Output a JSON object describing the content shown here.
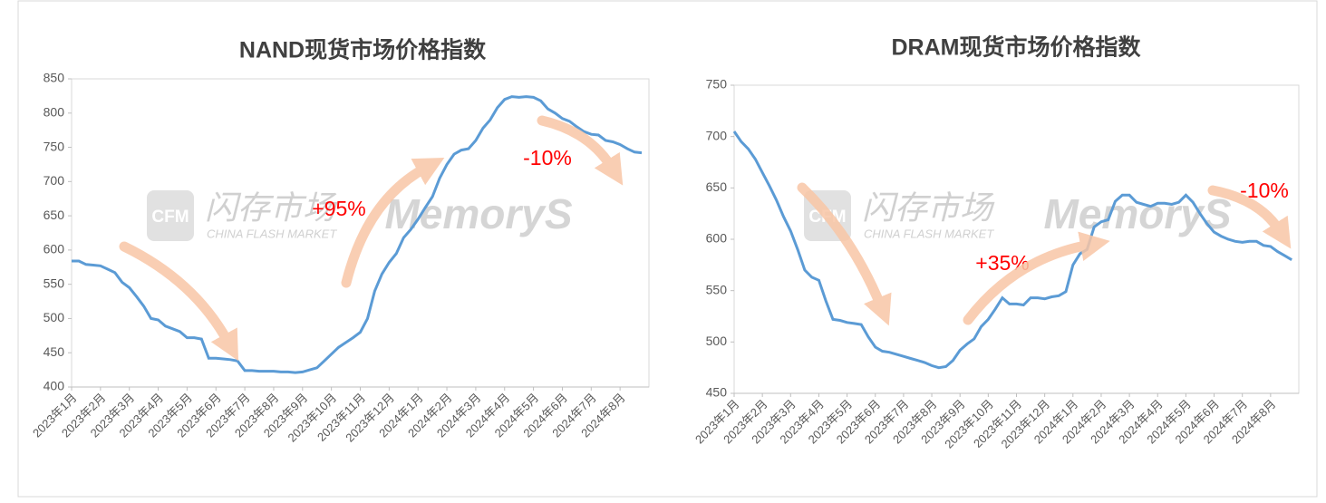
{
  "chart_data": [
    {
      "type": "line",
      "title": "NAND现货市场价格指数",
      "color": "#5b9bd5",
      "categories": [
        "2023年1月",
        null,
        null,
        null,
        "2023年2月",
        null,
        null,
        null,
        "2023年3月",
        null,
        null,
        null,
        "2023年4月",
        null,
        null,
        null,
        "2023年5月",
        null,
        null,
        null,
        "2023年6月",
        null,
        null,
        null,
        "2023年7月",
        null,
        null,
        null,
        "2023年8月",
        null,
        null,
        null,
        "2023年9月",
        null,
        null,
        null,
        "2023年10月",
        null,
        null,
        null,
        "2023年11月",
        null,
        null,
        null,
        "2023年12月",
        null,
        null,
        null,
        "2024年1月",
        null,
        null,
        null,
        "2024年2月",
        null,
        null,
        null,
        "2024年3月",
        null,
        null,
        null,
        "2024年4月",
        null,
        null,
        null,
        "2024年5月",
        null,
        null,
        null,
        "2024年6月",
        null,
        null,
        null,
        "2024年7月",
        null,
        null,
        null,
        "2024年8月",
        null,
        null,
        null
      ],
      "values": [
        584,
        584,
        579,
        578,
        577,
        572,
        567,
        553,
        545,
        532,
        518,
        500,
        498,
        489,
        485,
        481,
        472,
        472,
        470,
        442,
        442,
        441,
        440,
        438,
        424,
        424,
        423,
        423,
        423,
        422,
        422,
        421,
        422,
        425,
        428,
        438,
        448,
        458,
        465,
        472,
        480,
        500,
        540,
        565,
        582,
        595,
        618,
        630,
        645,
        662,
        678,
        705,
        725,
        740,
        746,
        748,
        760,
        778,
        790,
        808,
        820,
        824,
        823,
        824,
        823,
        818,
        806,
        800,
        792,
        788,
        780,
        773,
        769,
        768,
        760,
        758,
        754,
        748,
        743,
        742
      ],
      "ylim": [
        400,
        850
      ],
      "yticks": [
        400,
        450,
        500,
        550,
        600,
        650,
        700,
        750,
        800,
        850
      ],
      "annotations": [
        "+95%",
        "-10%"
      ]
    },
    {
      "type": "line",
      "title": "DRAM现货市场价格指数",
      "color": "#5b9bd5",
      "categories": [
        "2023年1月",
        null,
        null,
        null,
        "2023年2月",
        null,
        null,
        null,
        "2023年3月",
        null,
        null,
        null,
        "2023年4月",
        null,
        null,
        null,
        "2023年5月",
        null,
        null,
        null,
        "2023年6月",
        null,
        null,
        null,
        "2023年7月",
        null,
        null,
        null,
        "2023年8月",
        null,
        null,
        null,
        "2023年9月",
        null,
        null,
        null,
        "2023年10月",
        null,
        null,
        null,
        "2023年11月",
        null,
        null,
        null,
        "2023年12月",
        null,
        null,
        null,
        "2024年1月",
        null,
        null,
        null,
        "2024年2月",
        null,
        null,
        null,
        "2024年3月",
        null,
        null,
        null,
        "2024年4月",
        null,
        null,
        null,
        "2024年5月",
        null,
        null,
        null,
        "2024年6月",
        null,
        null,
        null,
        "2024年7月",
        null,
        null,
        null,
        "2024年8月",
        null,
        null,
        null
      ],
      "values": [
        705,
        695,
        688,
        678,
        665,
        652,
        638,
        622,
        608,
        590,
        570,
        563,
        560,
        540,
        522,
        521,
        519,
        518,
        517,
        505,
        495,
        491,
        490,
        488,
        486,
        484,
        482,
        480,
        477,
        475,
        476,
        482,
        492,
        498,
        503,
        515,
        522,
        532,
        543,
        537,
        537,
        536,
        543,
        543,
        542,
        544,
        545,
        549,
        575,
        586,
        590,
        612,
        617,
        619,
        637,
        643,
        643,
        636,
        634,
        632,
        635,
        635,
        634,
        636,
        643,
        636,
        625,
        615,
        607,
        603,
        600,
        598,
        597,
        598,
        598,
        594,
        593,
        588,
        584,
        580
      ],
      "ylim": [
        450,
        750
      ],
      "yticks": [
        450,
        500,
        550,
        600,
        650,
        700,
        750
      ],
      "annotations": [
        "-10%",
        "+35%"
      ]
    }
  ],
  "watermark": {
    "cn": "闪存市场",
    "en": "CHINA FLASH MARKET",
    "brand": "MemoryS",
    "logo": "CFM"
  }
}
